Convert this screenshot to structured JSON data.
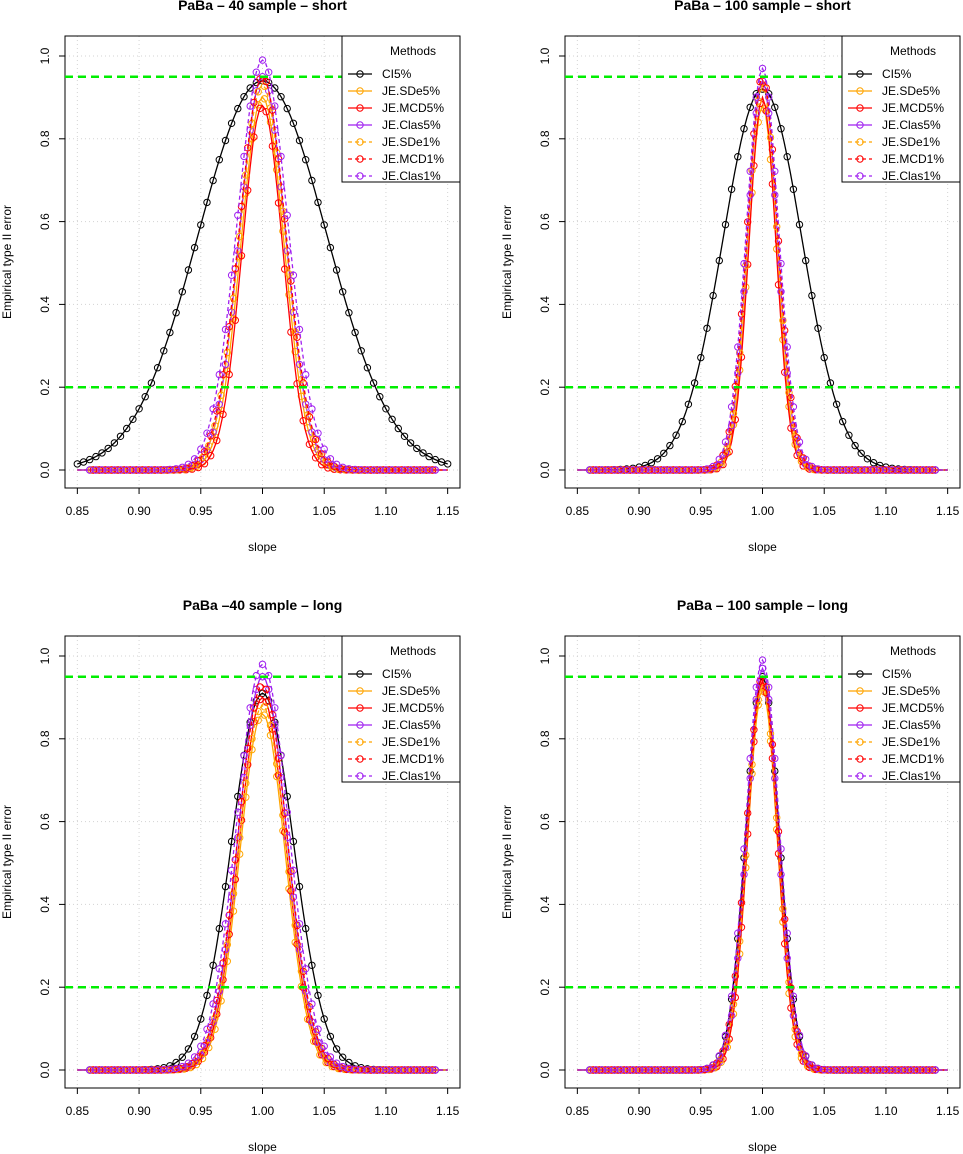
{
  "figure": {
    "legend_title": "Methods",
    "methods": [
      {
        "name": "CI5%",
        "color": "#000000",
        "dash": false
      },
      {
        "name": "JE.SDe5%",
        "color": "#FFA500",
        "dash": false
      },
      {
        "name": "JE.MCD5%",
        "color": "#FF0000",
        "dash": false
      },
      {
        "name": "JE.Clas5%",
        "color": "#A020F0",
        "dash": false
      },
      {
        "name": "JE.SDe1%",
        "color": "#FFA500",
        "dash": true
      },
      {
        "name": "JE.MCD1%",
        "color": "#FF0000",
        "dash": true
      },
      {
        "name": "JE.Clas1%",
        "color": "#A020F0",
        "dash": true
      }
    ],
    "reference_line_color": "#00EE00"
  },
  "chart_data": [
    {
      "type": "line",
      "title": "PaBa – 40 sample – short",
      "xlabel": "slope",
      "ylabel": "Empirical type II error",
      "xlim": [
        0.84,
        1.16
      ],
      "ylim": [
        0,
        1.0
      ],
      "xticks": [
        "0.85",
        "0.90",
        "0.95",
        "1.00",
        "1.05",
        "1.10",
        "1.15"
      ],
      "yticks": [
        "0.0",
        "0.2",
        "0.4",
        "0.6",
        "0.8",
        "1.0"
      ],
      "reference_lines": [
        0.95,
        0.2
      ],
      "grid": true,
      "legend": "top-right",
      "series": [
        {
          "name": "CI5%",
          "peak": 0.94,
          "sigma": 0.052
        },
        {
          "name": "JE.SDe5%",
          "peak": 0.9,
          "sigma": 0.0175
        },
        {
          "name": "JE.MCD5%",
          "peak": 0.88,
          "sigma": 0.0165
        },
        {
          "name": "JE.Clas5%",
          "peak": 0.95,
          "sigma": 0.0185
        },
        {
          "name": "JE.SDe1%",
          "peak": 0.93,
          "sigma": 0.0185
        },
        {
          "name": "JE.MCD1%",
          "peak": 0.95,
          "sigma": 0.019
        },
        {
          "name": "JE.Clas1%",
          "peak": 0.99,
          "sigma": 0.0205
        }
      ]
    },
    {
      "type": "line",
      "title": "PaBa – 100 sample – short",
      "xlabel": "slope",
      "ylabel": "Empirical type II error",
      "xlim": [
        0.84,
        1.16
      ],
      "ylim": [
        0,
        1.0
      ],
      "xticks": [
        "0.85",
        "0.90",
        "0.95",
        "1.00",
        "1.05",
        "1.10",
        "1.15"
      ],
      "yticks": [
        "0.0",
        "0.2",
        "0.4",
        "0.6",
        "0.8",
        "1.0"
      ],
      "reference_lines": [
        0.95,
        0.2
      ],
      "grid": true,
      "legend": "top-right",
      "series": [
        {
          "name": "CI5%",
          "peak": 0.92,
          "sigma": 0.032
        },
        {
          "name": "JE.SDe5%",
          "peak": 0.88,
          "sigma": 0.0115
        },
        {
          "name": "JE.MCD5%",
          "peak": 0.9,
          "sigma": 0.011
        },
        {
          "name": "JE.Clas5%",
          "peak": 0.94,
          "sigma": 0.012
        },
        {
          "name": "JE.SDe1%",
          "peak": 0.93,
          "sigma": 0.012
        },
        {
          "name": "JE.MCD1%",
          "peak": 0.95,
          "sigma": 0.0125
        },
        {
          "name": "JE.Clas1%",
          "peak": 0.97,
          "sigma": 0.013
        }
      ]
    },
    {
      "type": "line",
      "title": "PaBa –40 sample – long",
      "xlabel": "slope",
      "ylabel": "Empirical type II error",
      "xlim": [
        0.84,
        1.16
      ],
      "ylim": [
        0,
        1.0
      ],
      "xticks": [
        "0.85",
        "0.90",
        "0.95",
        "1.00",
        "1.05",
        "1.10",
        "1.15"
      ],
      "yticks": [
        "0.0",
        "0.2",
        "0.4",
        "0.6",
        "0.8",
        "1.0"
      ],
      "reference_lines": [
        0.95,
        0.2
      ],
      "grid": true,
      "legend": "top-right",
      "series": [
        {
          "name": "CI5%",
          "peak": 0.91,
          "sigma": 0.025
        },
        {
          "name": "JE.SDe5%",
          "peak": 0.86,
          "sigma": 0.0185
        },
        {
          "name": "JE.MCD5%",
          "peak": 0.9,
          "sigma": 0.019
        },
        {
          "name": "JE.Clas5%",
          "peak": 0.95,
          "sigma": 0.0195
        },
        {
          "name": "JE.SDe1%",
          "peak": 0.88,
          "sigma": 0.0195
        },
        {
          "name": "JE.MCD1%",
          "peak": 0.93,
          "sigma": 0.02
        },
        {
          "name": "JE.Clas1%",
          "peak": 0.98,
          "sigma": 0.021
        }
      ]
    },
    {
      "type": "line",
      "title": "PaBa – 100 sample – long",
      "xlabel": "slope",
      "ylabel": "Empirical type II error",
      "xlim": [
        0.84,
        1.16
      ],
      "ylim": [
        0,
        1.0
      ],
      "xticks": [
        "0.85",
        "0.90",
        "0.95",
        "1.00",
        "1.05",
        "1.10",
        "1.15"
      ],
      "yticks": [
        "0.0",
        "0.2",
        "0.4",
        "0.6",
        "0.8",
        "1.0"
      ],
      "reference_lines": [
        0.95,
        0.2
      ],
      "grid": true,
      "legend": "top-right",
      "series": [
        {
          "name": "CI5%",
          "peak": 0.95,
          "sigma": 0.0135
        },
        {
          "name": "JE.SDe5%",
          "peak": 0.92,
          "sigma": 0.012
        },
        {
          "name": "JE.MCD5%",
          "peak": 0.94,
          "sigma": 0.012
        },
        {
          "name": "JE.Clas5%",
          "peak": 0.97,
          "sigma": 0.0125
        },
        {
          "name": "JE.SDe1%",
          "peak": 0.93,
          "sigma": 0.0125
        },
        {
          "name": "JE.MCD1%",
          "peak": 0.95,
          "sigma": 0.013
        },
        {
          "name": "JE.Clas1%",
          "peak": 0.99,
          "sigma": 0.0135
        }
      ]
    }
  ]
}
